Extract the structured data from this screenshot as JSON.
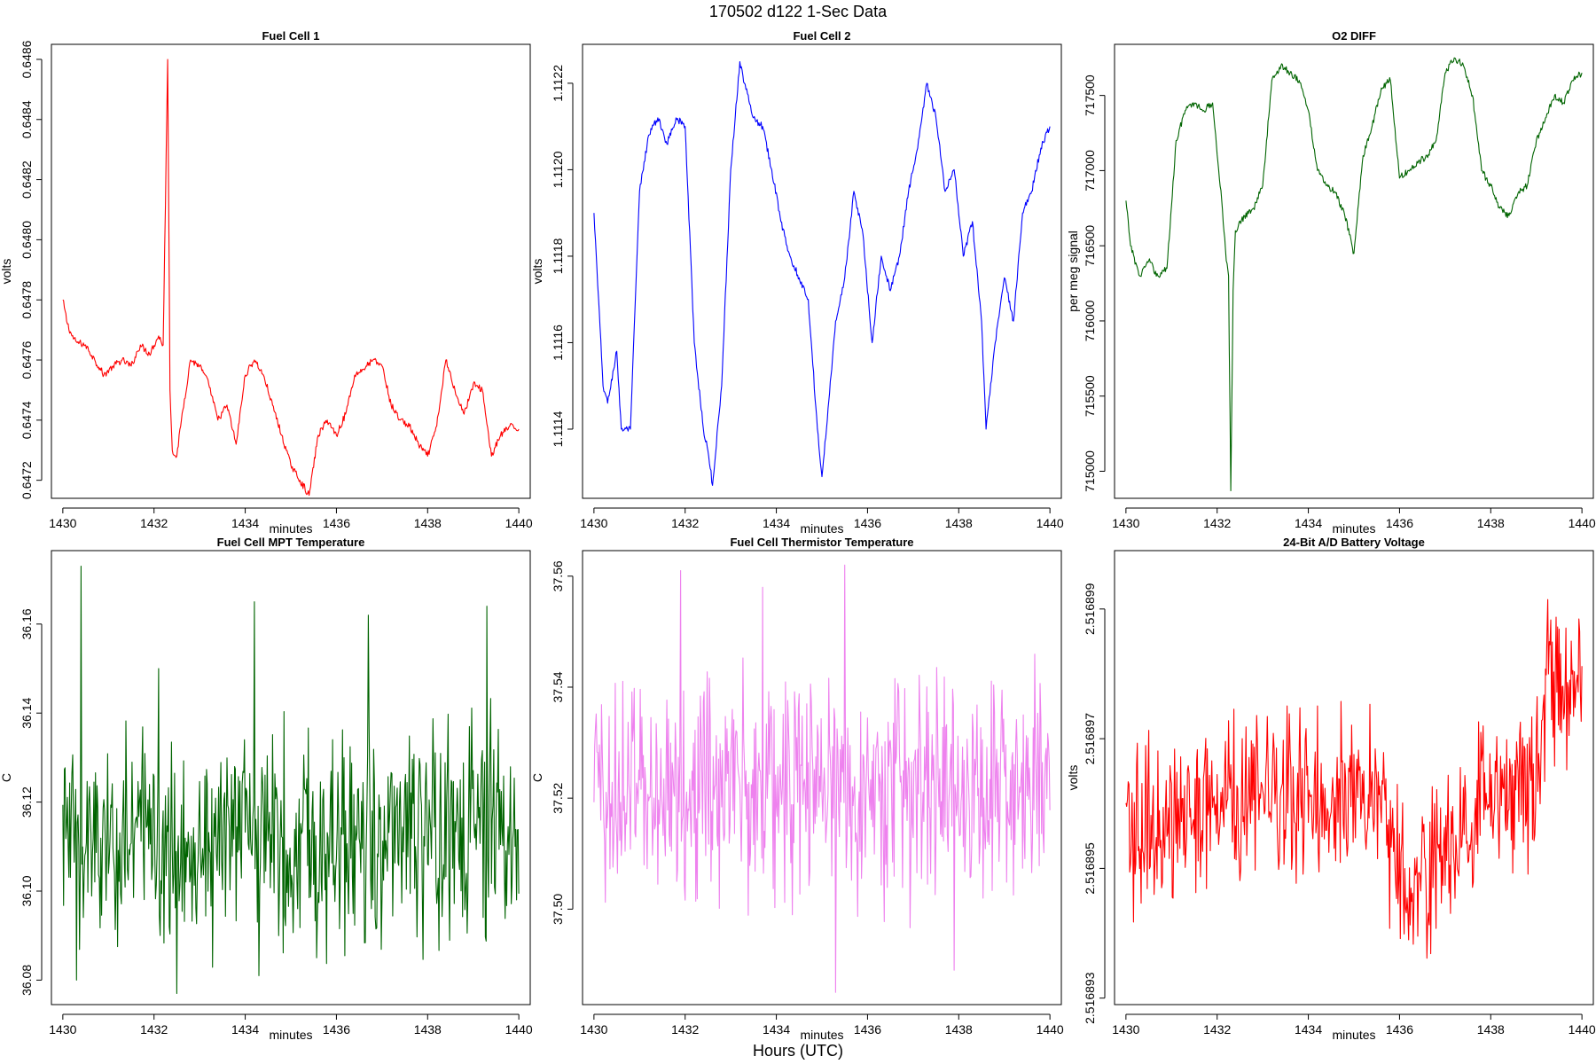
{
  "figure": {
    "title": "170502   d122   1-Sec Data",
    "bottom_label": "Hours (UTC)"
  },
  "chart_data": [
    {
      "type": "line",
      "title": "Fuel Cell 1",
      "xlabel": "minutes",
      "ylabel": "volts",
      "color": "#ff0000",
      "xlim": [
        1429.75,
        1440.25
      ],
      "ylim": [
        0.64714,
        0.64865
      ],
      "xticks": [
        1430,
        1432,
        1434,
        1436,
        1438,
        1440
      ],
      "yticks": [
        "0.6472",
        "0.6474",
        "0.6476",
        "0.6478",
        "0.6480",
        "0.6482",
        "0.6484",
        "0.6486"
      ],
      "ytick_values": [
        0.6472,
        0.6474,
        0.6476,
        0.6478,
        0.648,
        0.6482,
        0.6484,
        0.6486
      ],
      "series": [
        {
          "x": [
            1430.0,
            1430.1,
            1430.2,
            1430.3,
            1430.5,
            1430.7,
            1430.9,
            1431.1,
            1431.3,
            1431.5,
            1431.7,
            1431.9,
            1432.1,
            1432.2,
            1432.3,
            1432.35,
            1432.4,
            1432.5,
            1432.6,
            1432.8,
            1433.0,
            1433.2,
            1433.4,
            1433.6,
            1433.8,
            1434.0,
            1434.2,
            1434.4,
            1434.6,
            1434.8,
            1435.0,
            1435.2,
            1435.4,
            1435.6,
            1435.8,
            1436.0,
            1436.2,
            1436.4,
            1436.6,
            1436.8,
            1437.0,
            1437.2,
            1437.4,
            1437.6,
            1437.8,
            1438.0,
            1438.2,
            1438.4,
            1438.6,
            1438.8,
            1439.0,
            1439.2,
            1439.4,
            1439.6,
            1439.8,
            1440.0
          ],
          "y": [
            0.6478,
            0.64772,
            0.64768,
            0.64766,
            0.64765,
            0.6476,
            0.64755,
            0.64758,
            0.6476,
            0.64758,
            0.64765,
            0.64762,
            0.64768,
            0.64765,
            0.6486,
            0.6475,
            0.6473,
            0.64728,
            0.6474,
            0.6476,
            0.64758,
            0.64752,
            0.6474,
            0.64745,
            0.64732,
            0.64755,
            0.6476,
            0.64755,
            0.64745,
            0.64735,
            0.64725,
            0.6472,
            0.64715,
            0.64735,
            0.6474,
            0.64735,
            0.64742,
            0.64755,
            0.64757,
            0.6476,
            0.64758,
            0.64745,
            0.6474,
            0.64738,
            0.64732,
            0.64728,
            0.64738,
            0.6476,
            0.6475,
            0.64742,
            0.64752,
            0.6475,
            0.64728,
            0.64735,
            0.64738,
            0.64737
          ]
        }
      ]
    },
    {
      "type": "line",
      "title": "Fuel Cell 2",
      "xlabel": "minutes",
      "ylabel": "volts",
      "color": "#0000ff",
      "xlim": [
        1429.75,
        1440.25
      ],
      "ylim": [
        1.11124,
        1.11229
      ],
      "xticks": [
        1430,
        1432,
        1434,
        1436,
        1438,
        1440
      ],
      "yticks": [
        "1.1114",
        "1.1116",
        "1.1118",
        "1.1120",
        "1.1122"
      ],
      "ytick_values": [
        1.1114,
        1.1116,
        1.1118,
        1.112,
        1.1122
      ],
      "series": [
        {
          "x": [
            1430.0,
            1430.2,
            1430.3,
            1430.5,
            1430.6,
            1430.8,
            1431.0,
            1431.2,
            1431.4,
            1431.6,
            1431.8,
            1432.0,
            1432.2,
            1432.4,
            1432.5,
            1432.6,
            1432.8,
            1433.0,
            1433.2,
            1433.3,
            1433.5,
            1433.7,
            1433.9,
            1434.1,
            1434.3,
            1434.5,
            1434.7,
            1434.9,
            1435.0,
            1435.1,
            1435.3,
            1435.5,
            1435.7,
            1435.9,
            1436.1,
            1436.3,
            1436.5,
            1436.7,
            1436.9,
            1437.1,
            1437.3,
            1437.5,
            1437.7,
            1437.9,
            1438.1,
            1438.3,
            1438.5,
            1438.6,
            1438.8,
            1439.0,
            1439.2,
            1439.4,
            1439.6,
            1439.8,
            1440.0
          ],
          "y": [
            1.1119,
            1.1115,
            1.11146,
            1.11158,
            1.1114,
            1.1114,
            1.11195,
            1.11208,
            1.11212,
            1.11206,
            1.11212,
            1.1121,
            1.1116,
            1.1114,
            1.11135,
            1.11127,
            1.1115,
            1.112,
            1.11225,
            1.1122,
            1.11212,
            1.1121,
            1.112,
            1.11188,
            1.1118,
            1.11175,
            1.1117,
            1.1114,
            1.11129,
            1.1114,
            1.11165,
            1.11175,
            1.11195,
            1.11185,
            1.1116,
            1.1118,
            1.11172,
            1.1118,
            1.11195,
            1.11205,
            1.1122,
            1.11212,
            1.11195,
            1.112,
            1.1118,
            1.11188,
            1.11165,
            1.1114,
            1.1116,
            1.11175,
            1.11165,
            1.1119,
            1.11195,
            1.11205,
            1.1121
          ]
        }
      ]
    },
    {
      "type": "line",
      "title": "O2 DIFF",
      "xlabel": "minutes",
      "ylabel": "per meg signal",
      "color": "#006400",
      "xlim": [
        1429.75,
        1440.25
      ],
      "ylim": [
        714820,
        717840
      ],
      "xticks": [
        1430,
        1432,
        1434,
        1436,
        1438,
        1440
      ],
      "yticks": [
        "715000",
        "715500",
        "716000",
        "716500",
        "717000",
        "717500"
      ],
      "ytick_values": [
        715000,
        715500,
        716000,
        716500,
        717000,
        717500
      ],
      "series": [
        {
          "x": [
            1430.0,
            1430.1,
            1430.3,
            1430.5,
            1430.7,
            1430.9,
            1431.1,
            1431.3,
            1431.5,
            1431.7,
            1431.9,
            1432.1,
            1432.2,
            1432.25,
            1432.3,
            1432.35,
            1432.4,
            1432.6,
            1432.8,
            1433.0,
            1433.2,
            1433.4,
            1433.6,
            1433.8,
            1434.0,
            1434.2,
            1434.4,
            1434.6,
            1434.8,
            1435.0,
            1435.2,
            1435.4,
            1435.6,
            1435.8,
            1436.0,
            1436.2,
            1436.4,
            1436.6,
            1436.8,
            1437.0,
            1437.2,
            1437.4,
            1437.6,
            1437.8,
            1438.0,
            1438.2,
            1438.4,
            1438.6,
            1438.8,
            1439.0,
            1439.2,
            1439.4,
            1439.6,
            1439.8,
            1440.0
          ],
          "y": [
            716800,
            716500,
            716300,
            716400,
            716300,
            716350,
            717200,
            717400,
            717450,
            717400,
            717450,
            716800,
            716400,
            716300,
            714870,
            716200,
            716600,
            716700,
            716750,
            716900,
            717600,
            717700,
            717650,
            717600,
            717400,
            717000,
            716900,
            716850,
            716700,
            716450,
            717100,
            717300,
            717550,
            717600,
            716950,
            717000,
            717050,
            717100,
            717200,
            717650,
            717750,
            717700,
            717500,
            717000,
            716900,
            716750,
            716700,
            716850,
            716900,
            717200,
            717350,
            717500,
            717450,
            717600,
            717650
          ]
        }
      ]
    },
    {
      "type": "line",
      "title": "Fuel Cell MPT Temperature",
      "xlabel": "minutes",
      "ylabel": "C",
      "color": "#006400",
      "xlim": [
        1429.75,
        1440.25
      ],
      "ylim": [
        36.0745,
        36.1765
      ],
      "xticks": [
        1430,
        1432,
        1434,
        1436,
        1438,
        1440
      ],
      "yticks": [
        "36.08",
        "36.10",
        "36.12",
        "36.14",
        "36.16"
      ],
      "ytick_values": [
        36.08,
        36.1,
        36.12,
        36.14,
        36.16
      ],
      "series": [
        {
          "noise": {
            "center": 36.112,
            "amplitude": 0.022,
            "min": 36.077,
            "max": 36.173
          },
          "peaks_x": [
            1430.4,
            1434.2,
            1436.7,
            1439.3,
            1432.1
          ],
          "peaks_y": [
            36.173,
            36.165,
            36.162,
            36.164,
            36.15
          ],
          "dips_x": [
            1432.5,
            1434.3,
            1430.3
          ],
          "dips_y": [
            36.077,
            36.081,
            36.08
          ]
        }
      ]
    },
    {
      "type": "line",
      "title": "Fuel Cell Thermistor Temperature",
      "xlabel": "minutes",
      "ylabel": "C",
      "color": "#ee82ee",
      "xlim": [
        1429.75,
        1440.25
      ],
      "ylim": [
        37.4828,
        37.5646
      ],
      "xticks": [
        1430,
        1432,
        1434,
        1436,
        1438,
        1440
      ],
      "yticks": [
        "37.50",
        "37.52",
        "37.54",
        "37.56"
      ],
      "ytick_values": [
        37.5,
        37.52,
        37.54,
        37.56
      ],
      "series": [
        {
          "noise": {
            "center": 37.522,
            "amplitude": 0.018,
            "min": 37.485,
            "max": 37.562
          },
          "peaks_x": [
            1431.9,
            1435.5,
            1433.7
          ],
          "peaks_y": [
            37.561,
            37.562,
            37.558
          ],
          "dips_x": [
            1435.3,
            1437.9
          ],
          "dips_y": [
            37.485,
            37.489
          ]
        }
      ]
    },
    {
      "type": "line",
      "title": "24-Bit A/D Battery Voltage",
      "xlabel": "minutes",
      "ylabel": "volts",
      "color": "#ff0000",
      "xlim": [
        1429.75,
        1440.25
      ],
      "ylim": [
        2.5168929,
        2.5168999
      ],
      "xticks": [
        1430,
        1432,
        1434,
        1436,
        1438,
        1440
      ],
      "yticks": [
        "2.516893",
        "2.516895",
        "2.516897",
        "2.516899"
      ],
      "ytick_values": [
        2.516893,
        2.516895,
        2.516897,
        2.516899
      ],
      "series": [
        {
          "noise": {
            "center": 2.5168962,
            "amplitude": 1.1e-06,
            "min": 2.5168931,
            "max": 2.5168997
          },
          "trend_x": [
            1430.0,
            1432.0,
            1434.0,
            1435.5,
            1436.2,
            1437.0,
            1438.0,
            1439.0,
            1439.2,
            1440.0
          ],
          "trend_y": [
            2.5168955,
            2.516896,
            2.5168962,
            2.5168962,
            2.5168945,
            2.5168952,
            2.516896,
            2.5168962,
            2.5168978,
            2.516898
          ]
        }
      ]
    }
  ]
}
